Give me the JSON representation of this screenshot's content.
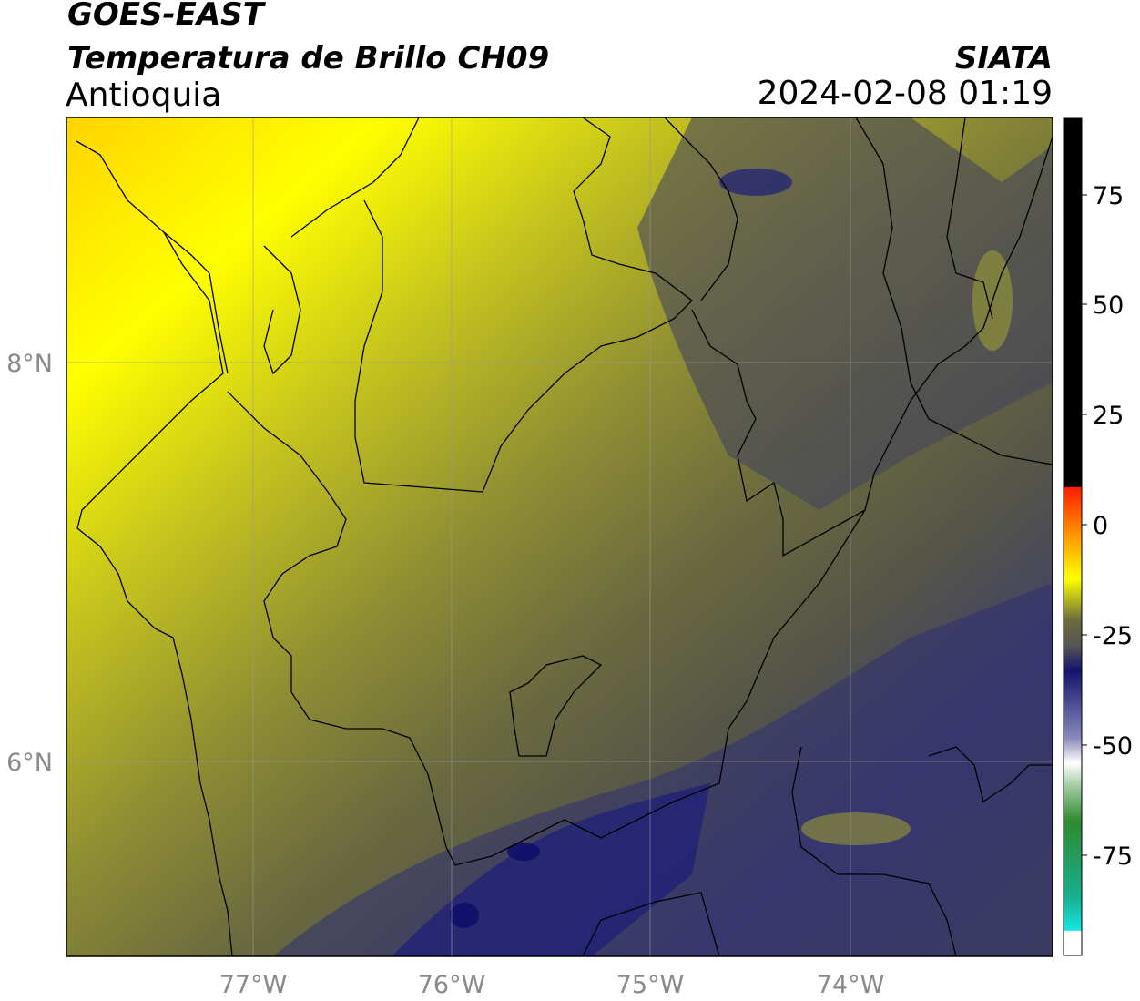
{
  "header": {
    "satellite": "GOES-EAST",
    "product": "Temperatura de Brillo CH09",
    "region": "Antioquia",
    "agency": "SIATA",
    "datetime": "2024-02-08 01:19"
  },
  "map": {
    "lat_ticks": [
      "8°N",
      "6°N"
    ],
    "lon_ticks": [
      "77°W",
      "76°W",
      "75°W",
      "74°W"
    ],
    "gridlines": true
  },
  "colorbar": {
    "tick_labels": [
      "75",
      "50",
      "25",
      "0",
      "-25",
      "-50",
      "-75"
    ],
    "colors": {
      "black": "#000000",
      "red": "#ff1e00",
      "orange": "#ff9a00",
      "yellow": "#ffff00",
      "olive": "#6b6b3e",
      "navy": "#14146e",
      "white": "#ffffff",
      "green": "#2f8a2f",
      "cyan": "#16e6e0"
    }
  }
}
